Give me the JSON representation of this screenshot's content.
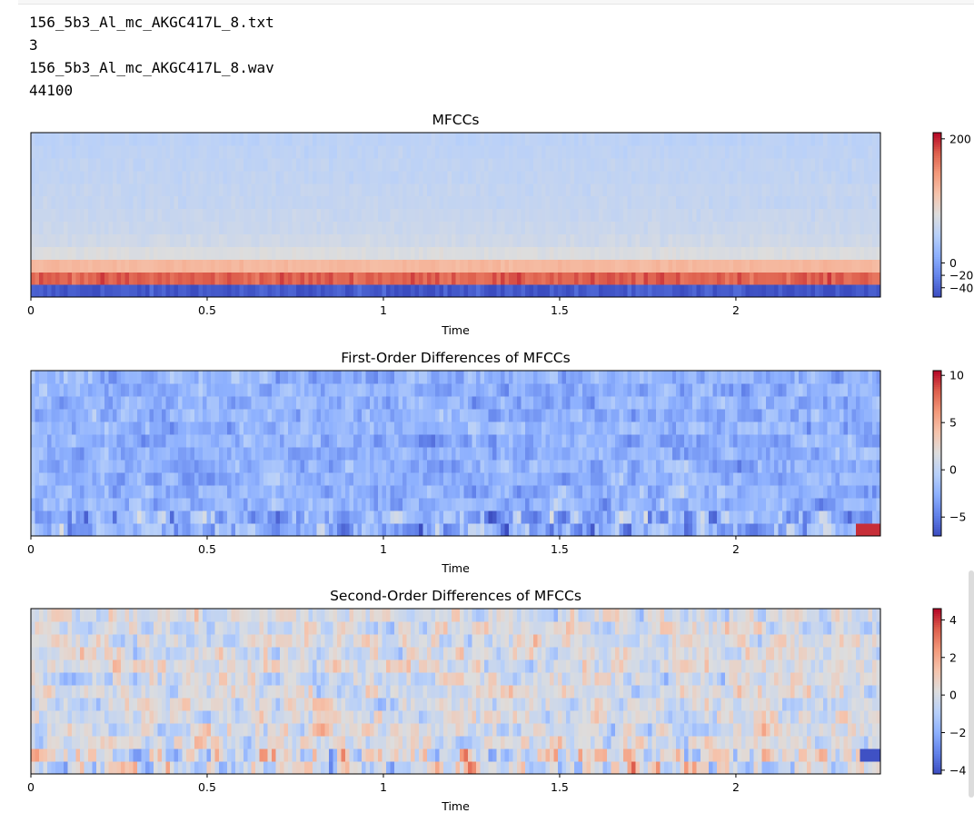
{
  "output_lines": [
    "156_5b3_Al_mc_AKGC417L_8.txt",
    "3",
    "156_5b3_Al_mc_AKGC417L_8.wav",
    "44100"
  ],
  "chart_data": [
    {
      "type": "heatmap",
      "title": "MFCCs",
      "xlabel": "Time",
      "ylabel": "",
      "xlim": [
        0,
        2.41
      ],
      "x_ticks": [
        "0",
        "0.5",
        "1",
        "1.5",
        "2"
      ],
      "x_tick_values": [
        0,
        0.5,
        1,
        1.5,
        2
      ],
      "colormap": "coolwarm",
      "n_coefficients": 13,
      "clim": [
        -55,
        210
      ],
      "colorbar_ticks": [
        "200",
        "0",
        "−20",
        "−40"
      ],
      "colorbar_tick_values": [
        200,
        0,
        -20,
        -40
      ],
      "coefficient_values": [
        -48,
        175,
        120,
        75,
        65,
        60,
        58,
        55,
        55,
        52,
        52,
        50,
        48
      ]
    },
    {
      "type": "heatmap",
      "title": "First-Order Differences of MFCCs",
      "xlabel": "Time",
      "ylabel": "",
      "xlim": [
        0,
        2.41
      ],
      "x_ticks": [
        "0",
        "0.5",
        "1",
        "1.5",
        "2"
      ],
      "x_tick_values": [
        0,
        0.5,
        1,
        1.5,
        2
      ],
      "colormap": "coolwarm",
      "n_coefficients": 13,
      "clim": [
        -7,
        10.5
      ],
      "colorbar_ticks": [
        "10",
        "5",
        "0",
        "−5"
      ],
      "colorbar_tick_values": [
        10,
        5,
        0,
        -5
      ]
    },
    {
      "type": "heatmap",
      "title": "Second-Order Differences of MFCCs",
      "xlabel": "Time",
      "ylabel": "",
      "xlim": [
        0,
        2.41
      ],
      "x_ticks": [
        "0",
        "0.5",
        "1",
        "1.5",
        "2"
      ],
      "x_tick_values": [
        0,
        0.5,
        1,
        1.5,
        2
      ],
      "colormap": "coolwarm",
      "n_coefficients": 13,
      "clim": [
        -4.2,
        4.6
      ],
      "colorbar_ticks": [
        "4",
        "2",
        "0",
        "−2",
        "−4"
      ],
      "colorbar_tick_values": [
        4,
        2,
        0,
        -2,
        -4
      ]
    }
  ]
}
